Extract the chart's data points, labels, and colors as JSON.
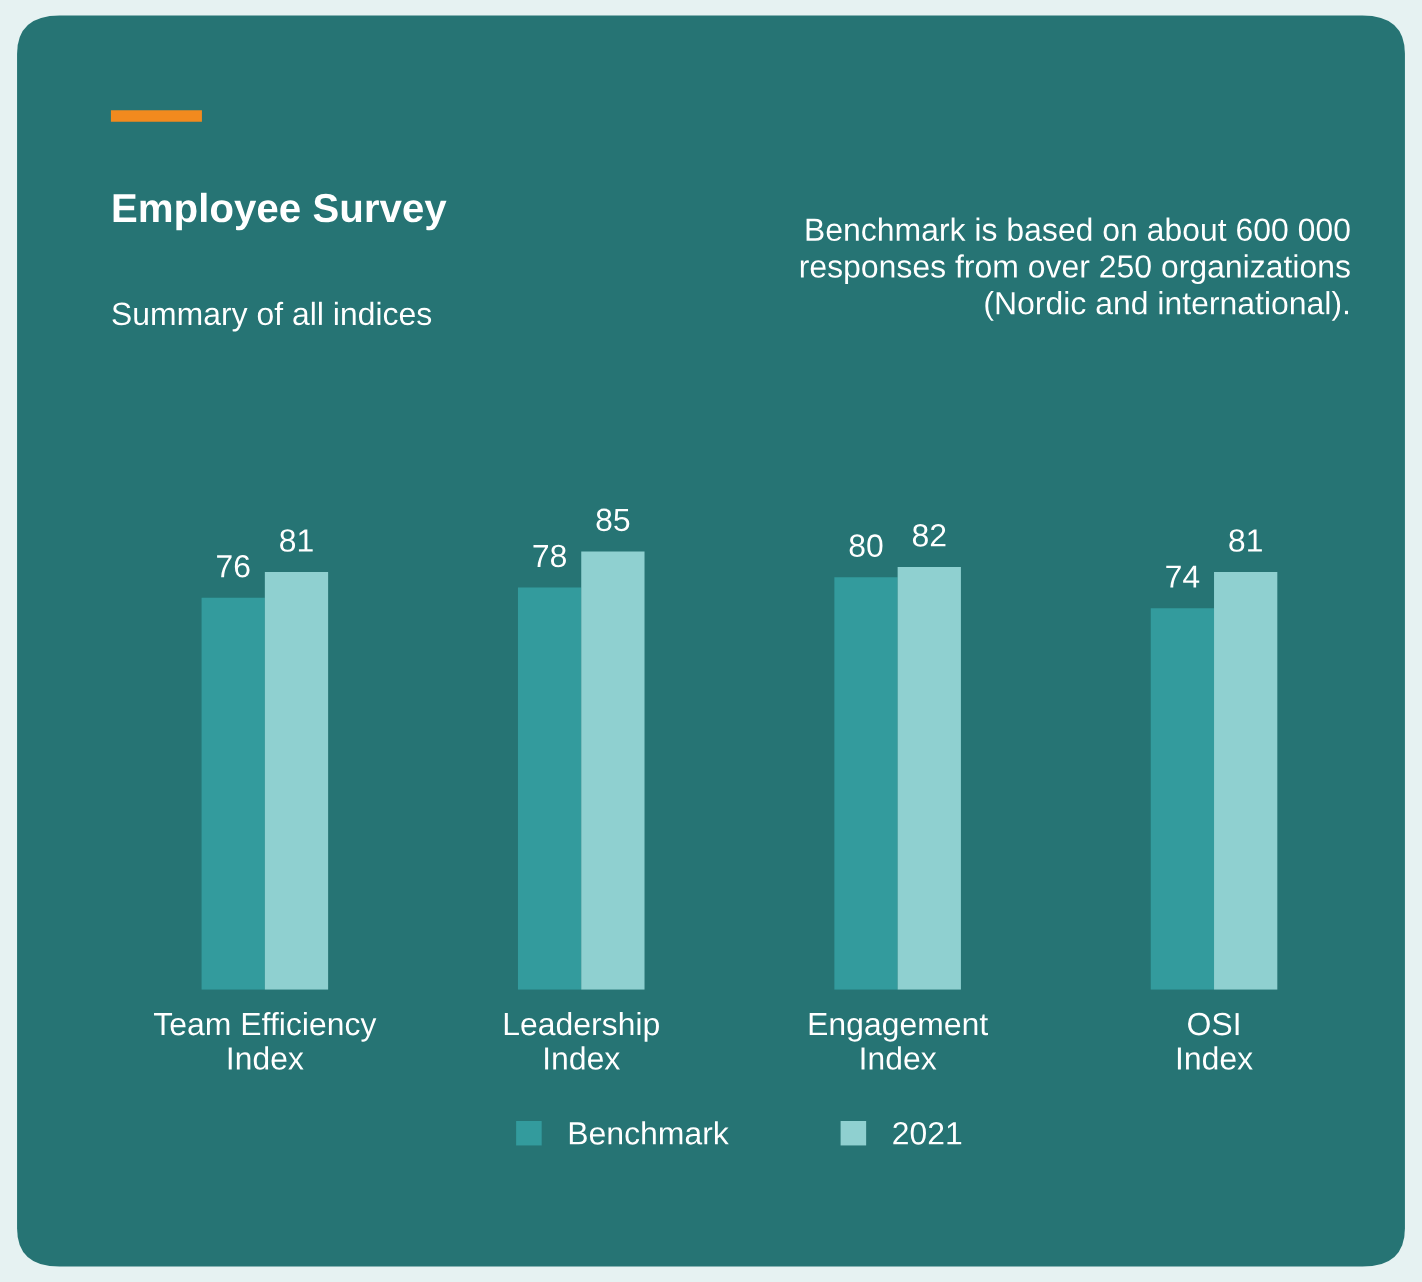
{
  "chart_data": {
    "type": "bar",
    "title": "Employee Survey",
    "subtitle": "Summary of all indices",
    "annotations": [
      "Benchmark is based on about 600 000\nresponses from over 250 organizations\n(Nordic and international)."
    ],
    "categories": [
      "Team Efficiency\nIndex",
      "Leadership\nIndex",
      "Engagement\nIndex",
      "OSI\nIndex"
    ],
    "series": [
      {
        "name": "Benchmark",
        "color": "#339b9d",
        "values": [
          76,
          78,
          80,
          74
        ]
      },
      {
        "name": "2021",
        "color": "#8fd0d0",
        "values": [
          81,
          85,
          82,
          81
        ]
      }
    ],
    "data_labels": true,
    "legend": "bottom"
  }
}
